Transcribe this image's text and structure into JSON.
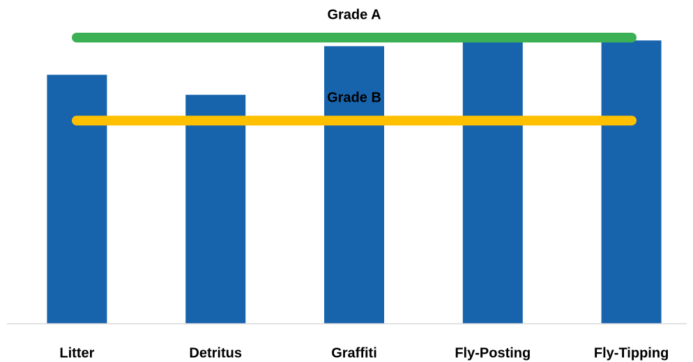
{
  "chart_data": {
    "type": "bar",
    "categories": [
      "Litter",
      "Detritus",
      "Graffiti",
      "Fly-Posting",
      "Fly-Tipping"
    ],
    "values": [
      87,
      80,
      97,
      98.5,
      99
    ],
    "color": "#1764ad",
    "ylim": [
      0,
      100
    ],
    "reference_lines": [
      {
        "label": "Grade A",
        "value": 100,
        "color": "#3cb054"
      },
      {
        "label": "Grade B",
        "value": 71,
        "color": "#ffc000"
      }
    ]
  }
}
